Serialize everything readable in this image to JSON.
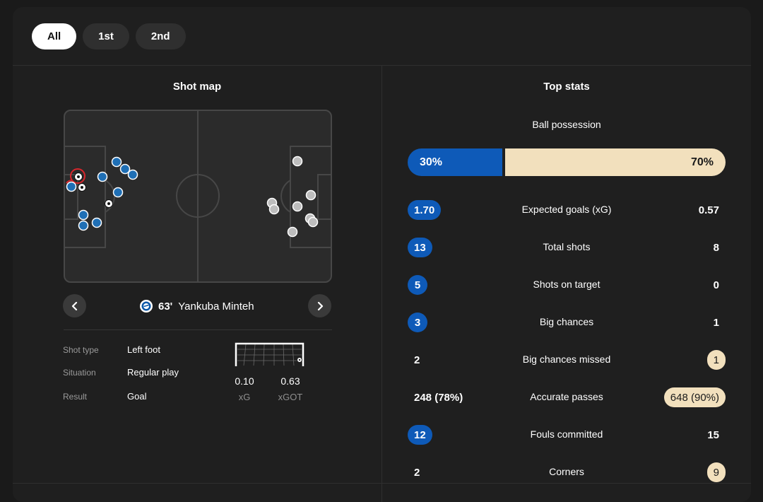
{
  "tabs": [
    {
      "label": "All",
      "active": true
    },
    {
      "label": "1st",
      "active": false
    },
    {
      "label": "2nd",
      "active": false
    }
  ],
  "shot_map": {
    "title": "Shot map",
    "selected_shot": {
      "minute": "63'",
      "player": "Yankuba Minteh",
      "details": [
        {
          "label": "Shot type",
          "value": "Left foot"
        },
        {
          "label": "Situation",
          "value": "Regular play"
        },
        {
          "label": "Result",
          "value": "Goal"
        }
      ],
      "xg": "0.10",
      "xg_label": "xG",
      "xgot": "0.63",
      "xgot_label": "xGOT"
    },
    "home_color": "#1f6fb5",
    "away_color": "#bdbdbd",
    "selected_color": "#d9262c"
  },
  "top_stats": {
    "title": "Top stats",
    "possession": {
      "label": "Ball possession",
      "home": "30%",
      "away": "70%",
      "home_value": 30,
      "away_value": 70
    },
    "rows": [
      {
        "label": "Expected goals (xG)",
        "home": "1.70",
        "away": "0.57",
        "leader": "home"
      },
      {
        "label": "Total shots",
        "home": "13",
        "away": "8",
        "leader": "home"
      },
      {
        "label": "Shots on target",
        "home": "5",
        "away": "0",
        "leader": "home"
      },
      {
        "label": "Big chances",
        "home": "3",
        "away": "1",
        "leader": "home"
      },
      {
        "label": "Big chances missed",
        "home": "2",
        "away": "1",
        "leader": "away"
      },
      {
        "label": "Accurate passes",
        "home": "248 (78%)",
        "away": "648 (90%)",
        "leader": "away"
      },
      {
        "label": "Fouls committed",
        "home": "12",
        "away": "15",
        "leader": "home"
      },
      {
        "label": "Corners",
        "home": "2",
        "away": "9",
        "leader": "away"
      }
    ],
    "home_color": "#0e5ab8",
    "away_color": "#f2e0bd"
  },
  "icons": {
    "prev": "chevron-left-icon",
    "next": "chevron-right-icon",
    "team": "team-crest-icon",
    "goal": "football-icon"
  }
}
